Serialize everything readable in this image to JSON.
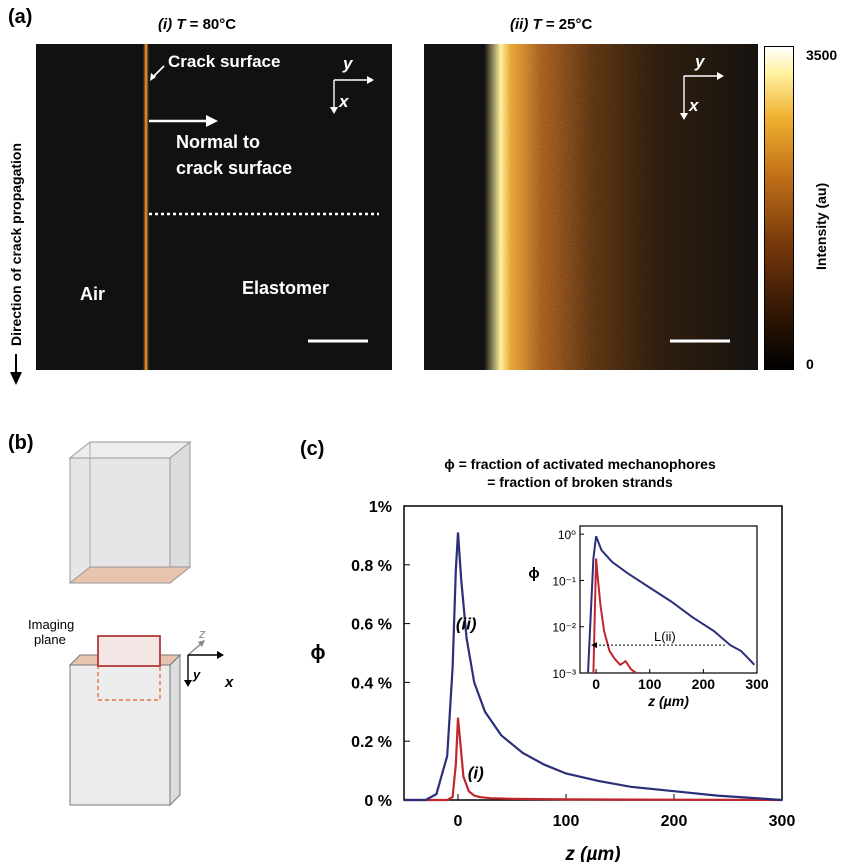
{
  "panel_a": {
    "label": "(a)",
    "image_i": {
      "title_prefix": "(i) ",
      "title_var": "T",
      "title_value": " = 80°C"
    },
    "image_ii": {
      "title_prefix": "(ii) ",
      "title_var": "T",
      "title_value": " = 25°C"
    },
    "annotations": {
      "crack_surface": "Crack surface",
      "normal": "Normal to",
      "normal2": "crack surface",
      "air": "Air",
      "elastomer": "Elastomer",
      "direction": "Direction of crack propagation",
      "axis_y": "y",
      "axis_x": "x"
    },
    "colorbar": {
      "max": "3500",
      "min": "0",
      "label": "Intensity (au)"
    }
  },
  "panel_b": {
    "label": "(b)",
    "imaging_plane": "Imaging",
    "imaging_plane2": "plane",
    "axis_z": "z",
    "axis_y": "y",
    "axis_x": "x"
  },
  "panel_c": {
    "label": "(c)",
    "title_line1": "ϕ = fraction of activated mechanophores",
    "title_line2": "= fraction of broken strands"
  },
  "colors": {
    "red_curve": "#c0272d",
    "blue_curve": "#2b2f7a",
    "sample_face": "#e8c3ad"
  },
  "chart_data": [
    {
      "type": "line",
      "ylabel": "ϕ",
      "xlabel": "z (µm)",
      "xlim": [
        -50,
        300
      ],
      "ylim": [
        0,
        1
      ],
      "x_ticks": [
        "0",
        "100",
        "200",
        "300"
      ],
      "y_ticks": [
        "0 %",
        "0.2 %",
        "0.4 %",
        "0.6 %",
        "0.8 %",
        "1%"
      ],
      "series": [
        {
          "name": "(i)",
          "color": "#c0272d",
          "x": [
            -50,
            -10,
            -5,
            -2,
            0,
            2,
            5,
            10,
            15,
            20,
            30,
            50,
            100,
            300
          ],
          "y": [
            0,
            0,
            0.01,
            0.12,
            0.28,
            0.2,
            0.08,
            0.03,
            0.015,
            0.01,
            0.006,
            0.004,
            0.002,
            0
          ]
        },
        {
          "name": "(ii)",
          "color": "#2b2f7a",
          "x": [
            -50,
            -30,
            -20,
            -10,
            -5,
            -2,
            0,
            3,
            8,
            15,
            25,
            40,
            60,
            80,
            100,
            130,
            160,
            200,
            240,
            280,
            300
          ],
          "y": [
            0,
            0,
            0.02,
            0.15,
            0.45,
            0.78,
            0.91,
            0.75,
            0.55,
            0.4,
            0.3,
            0.22,
            0.16,
            0.12,
            0.09,
            0.065,
            0.045,
            0.03,
            0.015,
            0.005,
            0
          ]
        }
      ]
    },
    {
      "type": "line",
      "ylabel": "ϕ",
      "xlabel": "z (µm)",
      "scale": "log",
      "xlim": [
        -30,
        300
      ],
      "ylim": [
        0.001,
        1.5
      ],
      "x_ticks": [
        "0",
        "100",
        "200",
        "300"
      ],
      "y_ticks": [
        "10⁻³",
        "10⁻²",
        "10⁻¹",
        "10⁰"
      ],
      "annotation": "L(ii)",
      "series": [
        {
          "name": "(i)",
          "color": "#c0272d",
          "x": [
            -5,
            0,
            3,
            8,
            15,
            25,
            35,
            45,
            55,
            65,
            75
          ],
          "y": [
            0.001,
            0.3,
            0.12,
            0.03,
            0.008,
            0.003,
            0.002,
            0.0015,
            0.0018,
            0.0012,
            0.001
          ]
        },
        {
          "name": "(ii)",
          "color": "#2b2f7a",
          "x": [
            -15,
            -5,
            0,
            10,
            30,
            60,
            100,
            140,
            180,
            220,
            250,
            270,
            285,
            295
          ],
          "y": [
            0.001,
            0.3,
            0.9,
            0.45,
            0.25,
            0.14,
            0.07,
            0.035,
            0.016,
            0.008,
            0.004,
            0.003,
            0.002,
            0.0015
          ]
        }
      ]
    }
  ]
}
